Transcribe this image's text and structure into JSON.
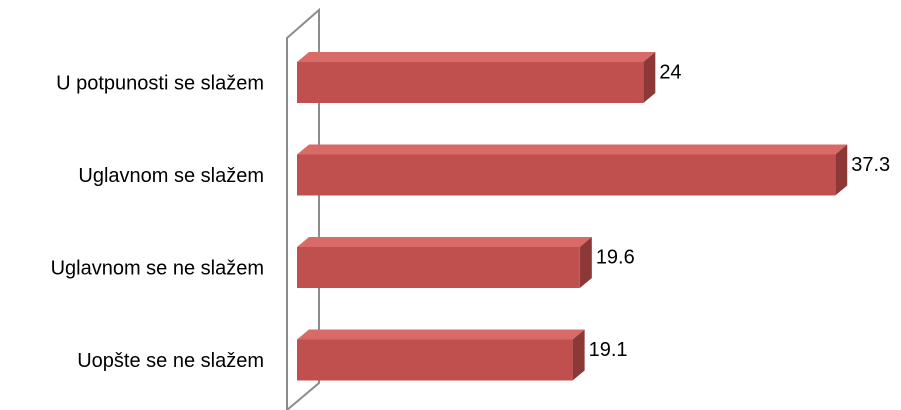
{
  "chart_data": {
    "type": "bar",
    "orientation": "horizontal",
    "style": "3d",
    "categories": [
      "U potpunosti se slažem",
      "Uglavnom se slažem",
      "Uglavnom se ne slažem",
      "Uopšte se ne slažem"
    ],
    "values": [
      24,
      37.3,
      19.6,
      19.1
    ],
    "data_labels": [
      "24",
      "37.3",
      "19.6",
      "19.1"
    ],
    "title": "",
    "xlabel": "",
    "ylabel": "",
    "xlim": [
      0,
      40
    ],
    "grid": false,
    "legend": "none",
    "colors": {
      "bar_front": "#c0504d",
      "bar_top": "#d86a67",
      "bar_side": "#8c3836",
      "wall": "#8c8c8c"
    }
  }
}
